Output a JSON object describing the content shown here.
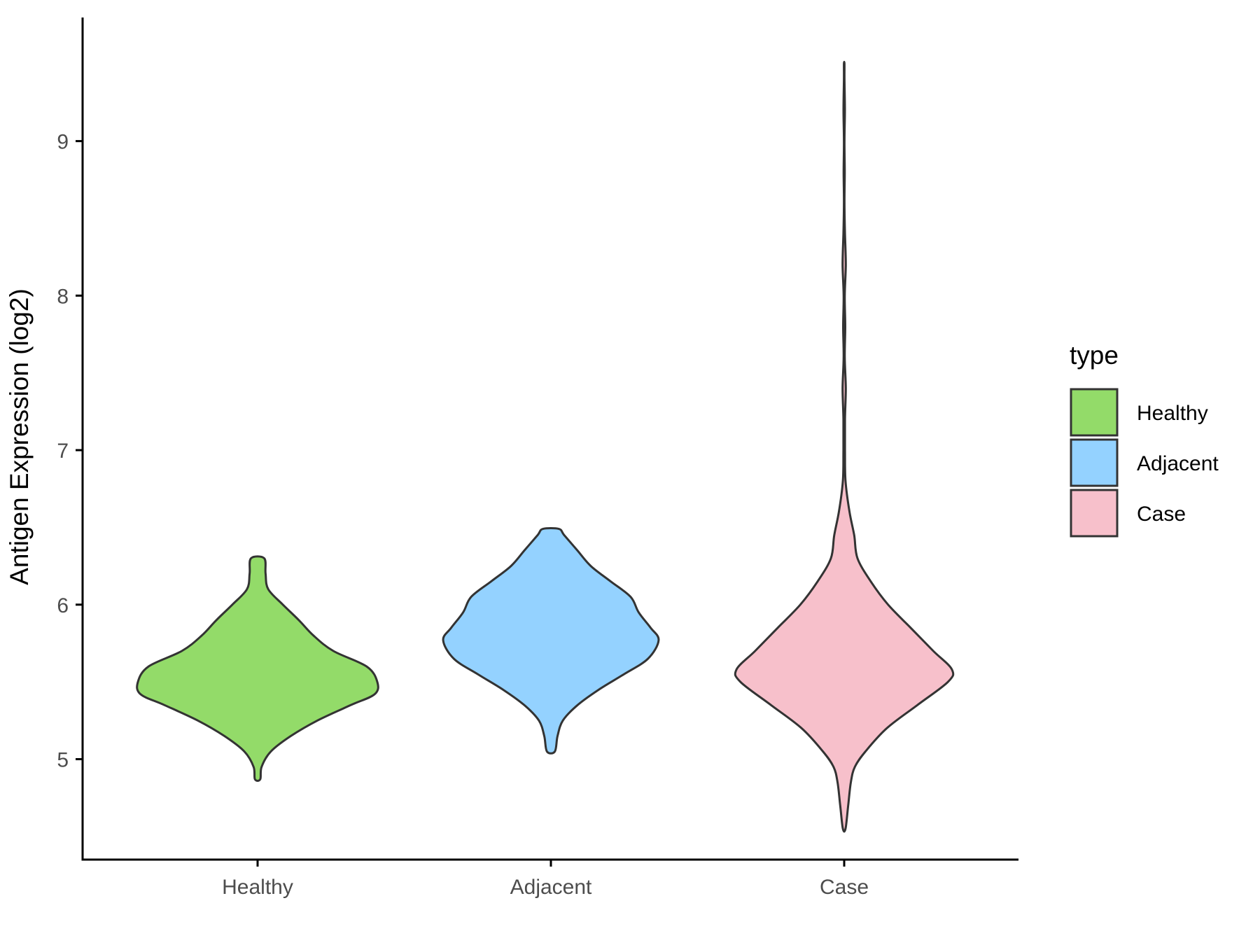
{
  "chart_data": {
    "type": "violin",
    "title": "",
    "xlabel": "",
    "ylabel": "Antigen Expression (log2)",
    "ylim": [
      4.35,
      9.8
    ],
    "yticks": [
      5,
      6,
      7,
      8,
      9
    ],
    "categories": [
      "Healthy",
      "Adjacent",
      "Case"
    ],
    "legend": {
      "title": "type",
      "position": "right",
      "items": [
        "Healthy",
        "Adjacent",
        "Case"
      ]
    },
    "grid": false,
    "series": [
      {
        "name": "Healthy",
        "color": "#93db69",
        "profile": [
          [
            4.87,
            0.02
          ],
          [
            4.95,
            0.03
          ],
          [
            5.05,
            0.1
          ],
          [
            5.15,
            0.25
          ],
          [
            5.25,
            0.45
          ],
          [
            5.35,
            0.7
          ],
          [
            5.42,
            0.88
          ],
          [
            5.5,
            0.9
          ],
          [
            5.6,
            0.82
          ],
          [
            5.7,
            0.57
          ],
          [
            5.8,
            0.42
          ],
          [
            5.9,
            0.31
          ],
          [
            6.0,
            0.19
          ],
          [
            6.1,
            0.08
          ],
          [
            6.2,
            0.06
          ],
          [
            6.3,
            0.05
          ]
        ]
      },
      {
        "name": "Adjacent",
        "color": "#94d2ff",
        "profile": [
          [
            5.05,
            0.03
          ],
          [
            5.15,
            0.05
          ],
          [
            5.25,
            0.09
          ],
          [
            5.35,
            0.2
          ],
          [
            5.45,
            0.36
          ],
          [
            5.55,
            0.55
          ],
          [
            5.65,
            0.73
          ],
          [
            5.77,
            0.81
          ],
          [
            5.85,
            0.75
          ],
          [
            5.95,
            0.66
          ],
          [
            6.05,
            0.6
          ],
          [
            6.15,
            0.45
          ],
          [
            6.25,
            0.3
          ],
          [
            6.35,
            0.2
          ],
          [
            6.45,
            0.1
          ],
          [
            6.49,
            0.06
          ]
        ]
      },
      {
        "name": "Case",
        "color": "#f7c0cb",
        "profile": [
          [
            4.55,
            0.01
          ],
          [
            4.7,
            0.03
          ],
          [
            4.85,
            0.05
          ],
          [
            4.95,
            0.08
          ],
          [
            5.05,
            0.16
          ],
          [
            5.2,
            0.32
          ],
          [
            5.35,
            0.55
          ],
          [
            5.5,
            0.78
          ],
          [
            5.58,
            0.81
          ],
          [
            5.7,
            0.67
          ],
          [
            5.85,
            0.5
          ],
          [
            6.0,
            0.33
          ],
          [
            6.15,
            0.2
          ],
          [
            6.3,
            0.1
          ],
          [
            6.45,
            0.075
          ],
          [
            6.6,
            0.04
          ],
          [
            6.8,
            0.01
          ],
          [
            7.0,
            0.006
          ],
          [
            7.2,
            0.006
          ],
          [
            7.4,
            0.012
          ],
          [
            7.6,
            0.004
          ],
          [
            7.8,
            0.008
          ],
          [
            8.0,
            0.004
          ],
          [
            8.2,
            0.012
          ],
          [
            8.4,
            0.006
          ],
          [
            8.6,
            0.002
          ],
          [
            8.8,
            0.004
          ],
          [
            9.0,
            0.002
          ],
          [
            9.2,
            0.005
          ],
          [
            9.4,
            0.002
          ],
          [
            9.5,
            0.002
          ]
        ]
      }
    ]
  },
  "style": {
    "outline_color": "#333333",
    "axis_color": "#000000"
  }
}
